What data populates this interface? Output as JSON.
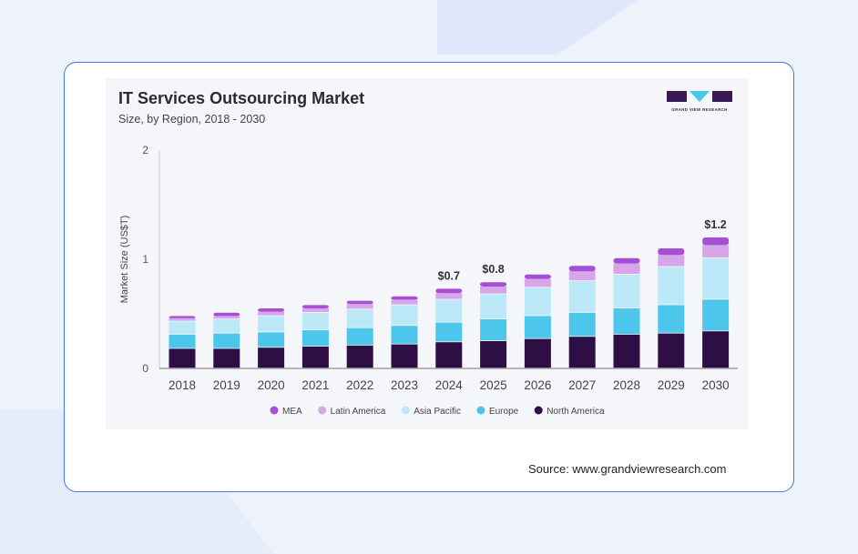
{
  "source": "Source: www.grandviewresearch.com",
  "logo": {
    "text": "GRAND VIEW RESEARCH"
  },
  "chart_data": {
    "type": "bar",
    "stacked": true,
    "title": "IT Services Outsourcing Market",
    "subtitle": "Size, by Region, 2018 - 2030",
    "ylabel": "Market Size (US$T)",
    "xlabel": "",
    "ylim": [
      0,
      2
    ],
    "yticks": [
      "0",
      "1",
      "2"
    ],
    "grid": false,
    "legend_position": "bottom",
    "categories": [
      "2018",
      "2019",
      "2020",
      "2021",
      "2022",
      "2023",
      "2024",
      "2025",
      "2026",
      "2027",
      "2028",
      "2029",
      "2030"
    ],
    "series": [
      {
        "name": "North America",
        "color": "#2e0f45",
        "values": [
          0.18,
          0.18,
          0.19,
          0.2,
          0.21,
          0.22,
          0.24,
          0.25,
          0.27,
          0.29,
          0.31,
          0.32,
          0.34
        ]
      },
      {
        "name": "Europe",
        "color": "#4dc6ec",
        "values": [
          0.13,
          0.14,
          0.14,
          0.15,
          0.16,
          0.17,
          0.18,
          0.2,
          0.21,
          0.22,
          0.24,
          0.26,
          0.29
        ]
      },
      {
        "name": "Asia Pacific",
        "color": "#bde8f7",
        "values": [
          0.12,
          0.13,
          0.15,
          0.16,
          0.17,
          0.19,
          0.21,
          0.23,
          0.26,
          0.29,
          0.31,
          0.35,
          0.38
        ]
      },
      {
        "name": "Latin America",
        "color": "#d6a6e8",
        "values": [
          0.03,
          0.03,
          0.04,
          0.04,
          0.05,
          0.05,
          0.06,
          0.07,
          0.08,
          0.09,
          0.1,
          0.11,
          0.12
        ]
      },
      {
        "name": "MEA",
        "color": "#a64fd6",
        "values": [
          0.02,
          0.03,
          0.03,
          0.03,
          0.03,
          0.03,
          0.04,
          0.04,
          0.04,
          0.05,
          0.05,
          0.06,
          0.07
        ]
      }
    ],
    "legend_order": [
      "MEA",
      "Latin America",
      "Asia Pacific",
      "Europe",
      "North America"
    ],
    "annotations": [
      {
        "category": "2024",
        "text": "$0.7"
      },
      {
        "category": "2025",
        "text": "$0.8"
      },
      {
        "category": "2030",
        "text": "$1.2"
      }
    ]
  }
}
